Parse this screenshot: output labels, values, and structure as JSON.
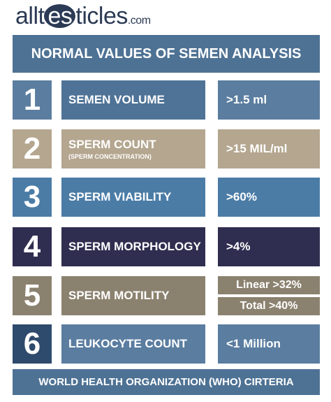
{
  "logo": {
    "prefix": "allt",
    "highlight": "es",
    "suffix": "ticles",
    "domain": ".com"
  },
  "title": "NORMAL VALUES OF SEMEN ANALYSIS",
  "rows": [
    {
      "number": "1",
      "label": "SEMEN VOLUME",
      "values": [
        ">1.5 ml"
      ]
    },
    {
      "number": "2",
      "label": "SPERM COUNT",
      "sublabel": "(SPERM CONCENTRATION)",
      "values": [
        ">15 MIL/ml"
      ]
    },
    {
      "number": "3",
      "label": "SPERM VIABILITY",
      "values": [
        ">60%"
      ]
    },
    {
      "number": "4",
      "label": "SPERM MORPHOLOGY",
      "values": [
        ">4%"
      ]
    },
    {
      "number": "5",
      "label": "SPERM MOTILITY",
      "values": [
        "Linear >32%",
        "Total >40%"
      ]
    },
    {
      "number": "6",
      "label": "LEUKOCYTE COUNT",
      "values": [
        "<1 Million"
      ]
    }
  ],
  "footer": "WORLD HEALTH ORGANIZATION (WHO) CIRTERIA"
}
